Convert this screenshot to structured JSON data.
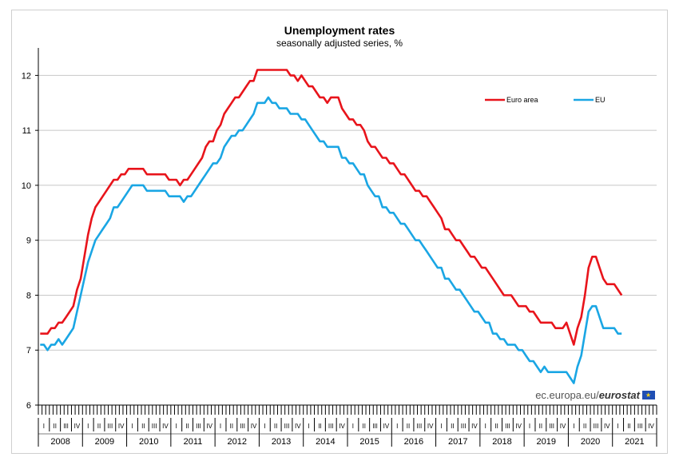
{
  "chart_data": {
    "type": "line",
    "title": "Unemployment rates",
    "subtitle": "seasonally adjusted series, %",
    "ylim": [
      6,
      12.5
    ],
    "yticks": [
      6,
      7,
      8,
      9,
      10,
      11,
      12
    ],
    "years": [
      "2008",
      "2009",
      "2010",
      "2011",
      "2012",
      "2013",
      "2014",
      "2015",
      "2016",
      "2017",
      "2018",
      "2019",
      "2020",
      "2021"
    ],
    "quarter_labels": [
      "I",
      "II",
      "III",
      "IV"
    ],
    "x_start": "2008-01",
    "grid": "horizontal",
    "legend_position": "top-right",
    "series": [
      {
        "name": "Euro area",
        "color": "#e8141b",
        "values": [
          7.3,
          7.3,
          7.3,
          7.4,
          7.4,
          7.5,
          7.5,
          7.6,
          7.7,
          7.8,
          8.1,
          8.3,
          8.7,
          9.1,
          9.4,
          9.6,
          9.7,
          9.8,
          9.9,
          10.0,
          10.1,
          10.1,
          10.2,
          10.2,
          10.3,
          10.3,
          10.3,
          10.3,
          10.3,
          10.2,
          10.2,
          10.2,
          10.2,
          10.2,
          10.2,
          10.1,
          10.1,
          10.1,
          10.0,
          10.1,
          10.1,
          10.2,
          10.3,
          10.4,
          10.5,
          10.7,
          10.8,
          10.8,
          11.0,
          11.1,
          11.3,
          11.4,
          11.5,
          11.6,
          11.6,
          11.7,
          11.8,
          11.9,
          11.9,
          12.1,
          12.1,
          12.1,
          12.1,
          12.1,
          12.1,
          12.1,
          12.1,
          12.1,
          12.0,
          12.0,
          11.9,
          12.0,
          11.9,
          11.8,
          11.8,
          11.7,
          11.6,
          11.6,
          11.5,
          11.6,
          11.6,
          11.6,
          11.4,
          11.3,
          11.2,
          11.2,
          11.1,
          11.1,
          11.0,
          10.8,
          10.7,
          10.7,
          10.6,
          10.5,
          10.5,
          10.4,
          10.4,
          10.3,
          10.2,
          10.2,
          10.1,
          10.0,
          9.9,
          9.9,
          9.8,
          9.8,
          9.7,
          9.6,
          9.5,
          9.4,
          9.2,
          9.2,
          9.1,
          9.0,
          9.0,
          8.9,
          8.8,
          8.7,
          8.7,
          8.6,
          8.5,
          8.5,
          8.4,
          8.3,
          8.2,
          8.1,
          8.0,
          8.0,
          8.0,
          7.9,
          7.8,
          7.8,
          7.8,
          7.7,
          7.7,
          7.6,
          7.5,
          7.5,
          7.5,
          7.5,
          7.4,
          7.4,
          7.4,
          7.5,
          7.3,
          7.1,
          7.4,
          7.6,
          8.0,
          8.5,
          8.7,
          8.7,
          8.5,
          8.3,
          8.2,
          8.2,
          8.2,
          8.1,
          8.0
        ]
      },
      {
        "name": "EU",
        "color": "#1aa6e4",
        "values": [
          7.1,
          7.1,
          7.0,
          7.1,
          7.1,
          7.2,
          7.1,
          7.2,
          7.3,
          7.4,
          7.7,
          8.0,
          8.3,
          8.6,
          8.8,
          9.0,
          9.1,
          9.2,
          9.3,
          9.4,
          9.6,
          9.6,
          9.7,
          9.8,
          9.9,
          10.0,
          10.0,
          10.0,
          10.0,
          9.9,
          9.9,
          9.9,
          9.9,
          9.9,
          9.9,
          9.8,
          9.8,
          9.8,
          9.8,
          9.7,
          9.8,
          9.8,
          9.9,
          10.0,
          10.1,
          10.2,
          10.3,
          10.4,
          10.4,
          10.5,
          10.7,
          10.8,
          10.9,
          10.9,
          11.0,
          11.0,
          11.1,
          11.2,
          11.3,
          11.5,
          11.5,
          11.5,
          11.6,
          11.5,
          11.5,
          11.4,
          11.4,
          11.4,
          11.3,
          11.3,
          11.3,
          11.2,
          11.2,
          11.1,
          11.0,
          10.9,
          10.8,
          10.8,
          10.7,
          10.7,
          10.7,
          10.7,
          10.5,
          10.5,
          10.4,
          10.4,
          10.3,
          10.2,
          10.2,
          10.0,
          9.9,
          9.8,
          9.8,
          9.6,
          9.6,
          9.5,
          9.5,
          9.4,
          9.3,
          9.3,
          9.2,
          9.1,
          9.0,
          9.0,
          8.9,
          8.8,
          8.7,
          8.6,
          8.5,
          8.5,
          8.3,
          8.3,
          8.2,
          8.1,
          8.1,
          8.0,
          7.9,
          7.8,
          7.7,
          7.7,
          7.6,
          7.5,
          7.5,
          7.3,
          7.3,
          7.2,
          7.2,
          7.1,
          7.1,
          7.1,
          7.0,
          7.0,
          6.9,
          6.8,
          6.8,
          6.7,
          6.6,
          6.7,
          6.6,
          6.6,
          6.6,
          6.6,
          6.6,
          6.6,
          6.5,
          6.4,
          6.7,
          6.9,
          7.3,
          7.7,
          7.8,
          7.8,
          7.6,
          7.4,
          7.4,
          7.4,
          7.4,
          7.3,
          7.3
        ]
      }
    ]
  },
  "brand": {
    "text_light": "ec.europa.eu/",
    "text_bold": "eurostat"
  }
}
